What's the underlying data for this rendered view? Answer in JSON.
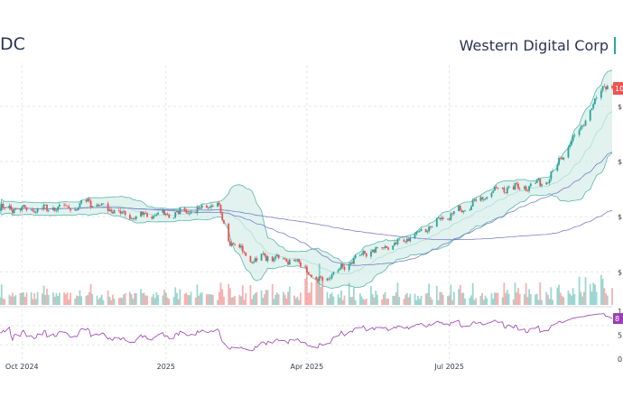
{
  "header": {
    "ticker": "DC",
    "company": "Western Digital Corp"
  },
  "colors": {
    "up": "#26a69a",
    "down": "#ef5350",
    "band_fill": "#cde9e4",
    "band_line": "#59b8aa",
    "sma": "#7b7fc8",
    "rsi": "#9b3fb3",
    "last_badge": "#ef5350",
    "rsi_badge": "#9b3fb3"
  },
  "chart_data": {
    "type": "candlestick",
    "x_range": [
      "2024-09-17",
      "2025-10-13"
    ],
    "x_ticks": [
      {
        "date": "2024-10-01",
        "label": "Oct 2024"
      },
      {
        "date": "2025-01-01",
        "label": "2025"
      },
      {
        "date": "2025-04-01",
        "label": "Apr 2025"
      },
      {
        "date": "2025-07-01",
        "label": "Jul 2025"
      }
    ],
    "price_axis": {
      "ylim": [
        28,
        115
      ],
      "tick_labels": [
        "$",
        "$",
        "$",
        "$"
      ],
      "tick_values": [
        40,
        60,
        80,
        100
      ]
    },
    "price_anchors": [
      {
        "date": "2024-09-17",
        "v": 63
      },
      {
        "date": "2024-10-10",
        "v": 62.5
      },
      {
        "date": "2024-11-05",
        "v": 63.5
      },
      {
        "date": "2024-11-12",
        "v": 65.5
      },
      {
        "date": "2024-12-10",
        "v": 60
      },
      {
        "date": "2025-01-05",
        "v": 61
      },
      {
        "date": "2025-01-25",
        "v": 63
      },
      {
        "date": "2025-02-03",
        "v": 64.5
      },
      {
        "date": "2025-02-10",
        "v": 52
      },
      {
        "date": "2025-02-25",
        "v": 44
      },
      {
        "date": "2025-03-05",
        "v": 45.5
      },
      {
        "date": "2025-03-25",
        "v": 44
      },
      {
        "date": "2025-04-02",
        "v": 40
      },
      {
        "date": "2025-04-08",
        "v": 36
      },
      {
        "date": "2025-04-20",
        "v": 40
      },
      {
        "date": "2025-05-05",
        "v": 46
      },
      {
        "date": "2025-06-01",
        "v": 51
      },
      {
        "date": "2025-06-20",
        "v": 57
      },
      {
        "date": "2025-07-10",
        "v": 63
      },
      {
        "date": "2025-08-01",
        "v": 70
      },
      {
        "date": "2025-08-20",
        "v": 71
      },
      {
        "date": "2025-09-01",
        "v": 73
      },
      {
        "date": "2025-09-15",
        "v": 85
      },
      {
        "date": "2025-10-01",
        "v": 100
      },
      {
        "date": "2025-10-08",
        "v": 108
      },
      {
        "date": "2025-10-13",
        "v": 105
      }
    ],
    "last_price_label": "10",
    "volume_panel": {
      "label": "volume"
    },
    "rsi_panel": {
      "ylim": [
        0,
        100
      ],
      "tick_labels": [
        "1",
        "5",
        "0"
      ],
      "tick_values": [
        100,
        50,
        0
      ],
      "last_label": "8"
    },
    "indicators": [
      "bollinger-bands",
      "sma-short",
      "sma-long",
      "rsi"
    ]
  }
}
